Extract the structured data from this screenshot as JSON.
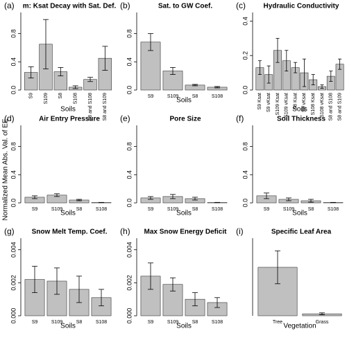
{
  "ylabel": "Normalized Mean Abs. Val. of EE",
  "chart_data": [
    {
      "type": "bar",
      "panel": "(a)",
      "title": "m: Ksat Decay with Sat. Def.",
      "xlabel": "Soils",
      "categories": [
        "S9",
        "S109",
        "S8",
        "S108",
        "S8 and S108",
        "S8 and S109"
      ],
      "values": [
        0.25,
        0.65,
        0.26,
        0.04,
        0.15,
        0.45
      ],
      "errors": [
        0.08,
        0.35,
        0.06,
        0.02,
        0.03,
        0.17
      ],
      "color": "#c0c0c0",
      "ylim": [
        0,
        1.1
      ],
      "yticks": [
        {
          "value": 0,
          "label": "0.0"
        },
        0.4,
        0.8
      ]
    },
    {
      "type": "bar",
      "panel": "(b)",
      "title": "Sat. to GW Coef.",
      "xlabel": "Soils",
      "categories": [
        "S9",
        "S109",
        "S8",
        "S108"
      ],
      "values": [
        0.68,
        0.27,
        0.07,
        0.04
      ],
      "errors": [
        0.12,
        0.05,
        0.01,
        0.01
      ],
      "color": "#c0c0c0",
      "ylim": [
        0,
        1.1
      ],
      "yticks": [
        {
          "value": 0,
          "label": "0.0"
        },
        0.4,
        0.8
      ]
    },
    {
      "type": "bar",
      "panel": "(c)",
      "title": "Hydraulic Conductivity",
      "xlabel": "Soils",
      "categories": [
        "S9 Ksat",
        "S9 vKsat",
        "S109 Ksat",
        "S109 vKsat",
        "S8 Ksat",
        "S8 vKsat",
        "S108 Ksat",
        "S108 vKsat",
        "S8 and S108",
        "S8 and S109"
      ],
      "values": [
        0.13,
        0.09,
        0.23,
        0.17,
        0.13,
        0.1,
        0.06,
        0.02,
        0.08,
        0.15
      ],
      "errors": [
        0.04,
        0.05,
        0.07,
        0.06,
        0.03,
        0.08,
        0.03,
        0.01,
        0.03,
        0.03
      ],
      "color": "#c0c0c0",
      "ylim": [
        0,
        0.45
      ],
      "yticks": [
        {
          "value": 0,
          "label": "0.0"
        },
        0.2,
        0.4
      ]
    },
    {
      "type": "bar",
      "panel": "(d)",
      "title": "Air Entry Pressure",
      "xlabel": "Soils",
      "categories": [
        "S9",
        "S109",
        "S8",
        "S108"
      ],
      "values": [
        0.08,
        0.11,
        0.04,
        0.005
      ],
      "errors": [
        0.02,
        0.02,
        0.01,
        0.002
      ],
      "color": "#c0c0c0",
      "ylim": [
        0,
        1.1
      ],
      "yticks": [
        {
          "value": 0,
          "label": "0.0"
        },
        0.4,
        0.8
      ]
    },
    {
      "type": "bar",
      "panel": "(e)",
      "title": "Pore Size",
      "xlabel": "Soils",
      "categories": [
        "S9",
        "S109",
        "S8",
        "S108"
      ],
      "values": [
        0.07,
        0.09,
        0.06,
        0.005
      ],
      "errors": [
        0.02,
        0.03,
        0.02,
        0.002
      ],
      "color": "#c0c0c0",
      "ylim": [
        0,
        1.1
      ],
      "yticks": [
        {
          "value": 0,
          "label": "0.0"
        },
        0.4,
        0.8
      ]
    },
    {
      "type": "bar",
      "panel": "(f)",
      "title": "Soil Thickness",
      "xlabel": "Soils",
      "categories": [
        "S9",
        "S109",
        "S8",
        "S108"
      ],
      "values": [
        0.1,
        0.05,
        0.03,
        0.005
      ],
      "errors": [
        0.04,
        0.02,
        0.02,
        0.002
      ],
      "color": "#c0c0c0",
      "ylim": [
        0,
        1.1
      ],
      "yticks": [
        {
          "value": 0,
          "label": "0.0"
        },
        0.4,
        0.8
      ]
    },
    {
      "type": "bar",
      "panel": "(g)",
      "title": "Snow Melt Temp. Coef.",
      "xlabel": "Soils",
      "categories": [
        "S9",
        "S109",
        "S8",
        "S108"
      ],
      "values": [
        0.0022,
        0.0021,
        0.0016,
        0.0011
      ],
      "errors": [
        0.0008,
        0.0008,
        0.0008,
        0.0005
      ],
      "color": "#c0c0c0",
      "ylim": [
        0,
        0.0047
      ],
      "yticks": [
        {
          "value": 0,
          "label": "0.000"
        },
        {
          "value": 0.002,
          "label": "0.002"
        },
        {
          "value": 0.004,
          "label": "0.004"
        }
      ]
    },
    {
      "type": "bar",
      "panel": "(h)",
      "title": "Max Snow Energy Deficit",
      "xlabel": "Soils",
      "categories": [
        "S9",
        "S109",
        "S8",
        "S108"
      ],
      "values": [
        0.0024,
        0.0019,
        0.001,
        0.0008
      ],
      "errors": [
        0.0008,
        0.0004,
        0.0004,
        0.0003
      ],
      "color": "#c0c0c0",
      "ylim": [
        0,
        0.0047
      ],
      "yticks": [
        {
          "value": 0,
          "label": "0.000"
        },
        {
          "value": 0.002,
          "label": "0.002"
        },
        {
          "value": 0.004,
          "label": "0.004"
        }
      ]
    },
    {
      "type": "bar",
      "panel": "(i)",
      "title": "Specific Leaf Area",
      "xlabel": "Vegetation",
      "categories": [
        "Tree",
        "Grass"
      ],
      "values": [
        0.5,
        0.02
      ],
      "errors": [
        0.17,
        0.01
      ],
      "color": "#c0c0c0",
      "ylim": [
        0,
        0.8
      ]
    }
  ]
}
